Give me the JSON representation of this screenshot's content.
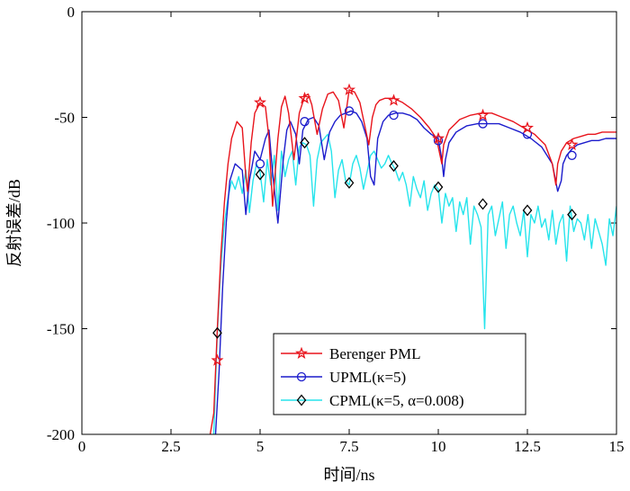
{
  "chart_data": {
    "type": "line",
    "title": "",
    "xlabel": "时间/ns",
    "ylabel": "反射误差/dB",
    "xlim": [
      0,
      15
    ],
    "ylim": [
      -200,
      0
    ],
    "xticks": [
      0,
      2.5,
      5,
      7.5,
      10,
      12.5,
      15
    ],
    "xtick_labels": [
      "0",
      "2.5",
      "5",
      "7.5",
      "10",
      "12.5",
      "15"
    ],
    "yticks": [
      0,
      -50,
      -100,
      -150,
      -200
    ],
    "ytick_labels": [
      "0",
      "-50",
      "-100",
      "-150",
      "-200"
    ],
    "grid": false,
    "legend_position": "bottom-right",
    "series": [
      {
        "name": "Berenger PML",
        "color": "#e8141c",
        "marker": "star",
        "x": [
          3.6,
          3.7,
          3.8,
          3.9,
          4.0,
          4.1,
          4.2,
          4.35,
          4.5,
          4.6,
          4.65,
          4.75,
          4.85,
          5.0,
          5.15,
          5.25,
          5.35,
          5.5,
          5.6,
          5.7,
          5.8,
          5.95,
          6.1,
          6.25,
          6.35,
          6.45,
          6.6,
          6.75,
          6.9,
          7.05,
          7.2,
          7.35,
          7.5,
          7.65,
          7.8,
          7.95,
          8.05,
          8.15,
          8.25,
          8.35,
          8.5,
          8.75,
          9.0,
          9.25,
          9.5,
          9.75,
          9.95,
          10.05,
          10.1,
          10.15,
          10.3,
          10.6,
          10.9,
          11.2,
          11.5,
          11.8,
          12.1,
          12.4,
          12.7,
          13.0,
          13.2,
          13.3,
          13.35,
          13.45,
          13.6,
          13.8,
          14.0,
          14.2,
          14.4,
          14.6,
          14.8,
          15.0
        ],
        "values": [
          -200,
          -190,
          -150,
          -115,
          -90,
          -72,
          -60,
          -52,
          -55,
          -78,
          -85,
          -62,
          -48,
          -43,
          -45,
          -60,
          -92,
          -60,
          -45,
          -40,
          -48,
          -70,
          -48,
          -40,
          -39,
          -44,
          -58,
          -46,
          -39,
          -38,
          -42,
          -55,
          -37,
          -38,
          -43,
          -55,
          -63,
          -50,
          -44,
          -42,
          -41,
          -41,
          -43,
          -46,
          -50,
          -55,
          -60,
          -68,
          -72,
          -63,
          -56,
          -51,
          -49,
          -48,
          -48,
          -50,
          -52,
          -55,
          -58,
          -63,
          -72,
          -82,
          -72,
          -66,
          -62,
          -60,
          -59,
          -58,
          -58,
          -57,
          -57,
          -57
        ],
        "marker_x": [
          3.8,
          5.0,
          6.25,
          7.5,
          8.75,
          10.0,
          11.25,
          12.5,
          13.75
        ],
        "marker_values": [
          -165,
          -43,
          -41,
          -37,
          -42,
          -60,
          -49,
          -55,
          -63
        ]
      },
      {
        "name": "UPML(κ=5)",
        "color": "#1c1ccc",
        "marker": "circle",
        "x": [
          3.75,
          3.85,
          3.95,
          4.05,
          4.15,
          4.3,
          4.5,
          4.6,
          4.7,
          4.85,
          5.0,
          5.15,
          5.25,
          5.35,
          5.5,
          5.65,
          5.75,
          5.85,
          6.0,
          6.1,
          6.2,
          6.35,
          6.5,
          6.65,
          6.8,
          6.95,
          7.1,
          7.25,
          7.4,
          7.55,
          7.7,
          7.85,
          8.0,
          8.1,
          8.2,
          8.3,
          8.45,
          8.6,
          8.8,
          9.0,
          9.2,
          9.4,
          9.6,
          9.8,
          10.0,
          10.1,
          10.15,
          10.2,
          10.3,
          10.5,
          10.8,
          11.1,
          11.4,
          11.7,
          12.0,
          12.3,
          12.6,
          12.9,
          13.2,
          13.35,
          13.45,
          13.5,
          13.6,
          13.75,
          13.9,
          14.1,
          14.3,
          14.5,
          14.7,
          15.0
        ],
        "values": [
          -200,
          -170,
          -130,
          -100,
          -80,
          -72,
          -75,
          -96,
          -80,
          -66,
          -70,
          -60,
          -56,
          -76,
          -100,
          -70,
          -56,
          -52,
          -58,
          -72,
          -56,
          -51,
          -50,
          -54,
          -70,
          -57,
          -52,
          -49,
          -48,
          -47,
          -48,
          -52,
          -60,
          -78,
          -82,
          -60,
          -52,
          -49,
          -48,
          -48,
          -49,
          -51,
          -55,
          -58,
          -60,
          -70,
          -78,
          -70,
          -62,
          -57,
          -54,
          -53,
          -53,
          -53,
          -55,
          -57,
          -60,
          -64,
          -72,
          -85,
          -80,
          -72,
          -68,
          -65,
          -63,
          -62,
          -61,
          -61,
          -60,
          -60
        ],
        "marker_x": [
          5.0,
          6.25,
          7.5,
          8.75,
          10.0,
          11.25,
          12.5,
          13.75
        ],
        "marker_values": [
          -72,
          -52,
          -47,
          -49,
          -61,
          -53,
          -58,
          -68
        ]
      },
      {
        "name": "CPML(κ=5, α=0.008)",
        "color": "#26e4ec",
        "marker": "diamond",
        "x": [
          3.7,
          3.8,
          3.9,
          4.0,
          4.1,
          4.2,
          4.3,
          4.4,
          4.5,
          4.6,
          4.7,
          4.8,
          4.9,
          5.0,
          5.1,
          5.2,
          5.3,
          5.4,
          5.5,
          5.6,
          5.7,
          5.8,
          5.9,
          6.0,
          6.1,
          6.2,
          6.3,
          6.4,
          6.5,
          6.6,
          6.7,
          6.8,
          6.9,
          7.0,
          7.1,
          7.2,
          7.3,
          7.4,
          7.5,
          7.6,
          7.7,
          7.8,
          7.9,
          8.0,
          8.1,
          8.2,
          8.3,
          8.4,
          8.5,
          8.6,
          8.7,
          8.8,
          8.9,
          9.0,
          9.1,
          9.2,
          9.3,
          9.4,
          9.5,
          9.6,
          9.7,
          9.8,
          9.9,
          10.0,
          10.1,
          10.2,
          10.3,
          10.4,
          10.5,
          10.6,
          10.7,
          10.8,
          10.9,
          11.0,
          11.1,
          11.2,
          11.3,
          11.4,
          11.5,
          11.6,
          11.7,
          11.8,
          11.9,
          12.0,
          12.1,
          12.2,
          12.3,
          12.4,
          12.5,
          12.6,
          12.7,
          12.8,
          12.9,
          13.0,
          13.1,
          13.2,
          13.3,
          13.4,
          13.5,
          13.6,
          13.7,
          13.8,
          13.9,
          14.0,
          14.1,
          14.2,
          14.3,
          14.4,
          14.5,
          14.6,
          14.7,
          14.8,
          14.9,
          15.0
        ],
        "values": [
          -200,
          -152,
          -120,
          -100,
          -88,
          -80,
          -84,
          -78,
          -86,
          -75,
          -95,
          -80,
          -72,
          -76,
          -90,
          -70,
          -82,
          -68,
          -94,
          -66,
          -78,
          -70,
          -66,
          -82,
          -64,
          -62,
          -63,
          -68,
          -92,
          -70,
          -62,
          -60,
          -58,
          -66,
          -88,
          -75,
          -70,
          -80,
          -82,
          -72,
          -68,
          -74,
          -84,
          -76,
          -68,
          -66,
          -70,
          -74,
          -72,
          -68,
          -72,
          -75,
          -80,
          -76,
          -82,
          -92,
          -78,
          -84,
          -88,
          -80,
          -94,
          -86,
          -82,
          -84,
          -100,
          -86,
          -92,
          -88,
          -104,
          -90,
          -96,
          -88,
          -110,
          -92,
          -96,
          -102,
          -150,
          -96,
          -92,
          -106,
          -98,
          -90,
          -112,
          -96,
          -92,
          -100,
          -106,
          -94,
          -116,
          -96,
          -100,
          -92,
          -102,
          -98,
          -108,
          -94,
          -110,
          -100,
          -96,
          -118,
          -92,
          -104,
          -98,
          -100,
          -108,
          -96,
          -112,
          -98,
          -104,
          -110,
          -120,
          -98,
          -106,
          -92
        ],
        "marker_x": [
          3.8,
          5.0,
          6.25,
          7.5,
          8.75,
          10.0,
          11.25,
          12.5,
          13.75
        ],
        "marker_values": [
          -152,
          -77,
          -62,
          -81,
          -73,
          -83,
          -91,
          -94,
          -96
        ]
      }
    ]
  }
}
